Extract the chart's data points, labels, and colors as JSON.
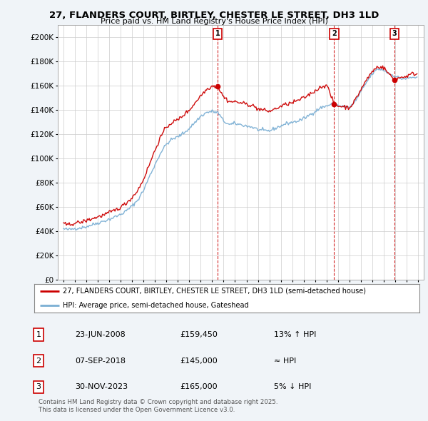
{
  "title": "27, FLANDERS COURT, BIRTLEY, CHESTER LE STREET, DH3 1LD",
  "subtitle": "Price paid vs. HM Land Registry's House Price Index (HPI)",
  "legend_line1": "27, FLANDERS COURT, BIRTLEY, CHESTER LE STREET, DH3 1LD (semi-detached house)",
  "legend_line2": "HPI: Average price, semi-detached house, Gateshead",
  "red_color": "#cc0000",
  "blue_color": "#7bafd4",
  "background_color": "#f0f4f8",
  "plot_bg_color": "#ffffff",
  "grid_color": "#cccccc",
  "ylim": [
    0,
    210000
  ],
  "yticks": [
    0,
    20000,
    40000,
    60000,
    80000,
    100000,
    120000,
    140000,
    160000,
    180000,
    200000
  ],
  "ytick_labels": [
    "£0",
    "£20K",
    "£40K",
    "£60K",
    "£80K",
    "£100K",
    "£120K",
    "£140K",
    "£160K",
    "£180K",
    "£200K"
  ],
  "sale_dates_num": [
    2008.47,
    2018.67,
    2023.92
  ],
  "sale_prices": [
    159450,
    145000,
    165000
  ],
  "sale_labels": [
    "1",
    "2",
    "3"
  ],
  "footnote": "Contains HM Land Registry data © Crown copyright and database right 2025.\nThis data is licensed under the Open Government Licence v3.0.",
  "xlim_start": 1994.5,
  "xlim_end": 2026.5,
  "hpi_anchors": [
    [
      1995.0,
      42000
    ],
    [
      1995.5,
      41500
    ],
    [
      1996.0,
      42500
    ],
    [
      1996.5,
      43000
    ],
    [
      1997.0,
      44000
    ],
    [
      1997.5,
      45500
    ],
    [
      1998.0,
      47000
    ],
    [
      1998.5,
      48500
    ],
    [
      1999.0,
      50000
    ],
    [
      1999.5,
      52000
    ],
    [
      2000.0,
      54000
    ],
    [
      2000.5,
      57000
    ],
    [
      2001.0,
      61000
    ],
    [
      2001.5,
      66000
    ],
    [
      2002.0,
      74000
    ],
    [
      2002.5,
      85000
    ],
    [
      2003.0,
      95000
    ],
    [
      2003.5,
      105000
    ],
    [
      2004.0,
      112000
    ],
    [
      2004.5,
      116000
    ],
    [
      2005.0,
      118000
    ],
    [
      2005.5,
      121000
    ],
    [
      2006.0,
      125000
    ],
    [
      2006.5,
      130000
    ],
    [
      2007.0,
      135000
    ],
    [
      2007.5,
      138000
    ],
    [
      2008.0,
      139000
    ],
    [
      2008.5,
      138000
    ],
    [
      2009.0,
      131000
    ],
    [
      2009.5,
      128000
    ],
    [
      2010.0,
      129000
    ],
    [
      2010.5,
      128000
    ],
    [
      2011.0,
      127000
    ],
    [
      2011.5,
      126000
    ],
    [
      2012.0,
      124000
    ],
    [
      2012.5,
      123000
    ],
    [
      2013.0,
      123000
    ],
    [
      2013.5,
      125000
    ],
    [
      2014.0,
      127000
    ],
    [
      2014.5,
      129000
    ],
    [
      2015.0,
      130000
    ],
    [
      2015.5,
      131000
    ],
    [
      2016.0,
      133000
    ],
    [
      2016.5,
      136000
    ],
    [
      2017.0,
      139000
    ],
    [
      2017.5,
      142000
    ],
    [
      2018.0,
      143500
    ],
    [
      2018.5,
      145000
    ],
    [
      2019.0,
      144000
    ],
    [
      2019.5,
      143000
    ],
    [
      2020.0,
      142000
    ],
    [
      2020.5,
      147000
    ],
    [
      2021.0,
      155000
    ],
    [
      2021.5,
      163000
    ],
    [
      2022.0,
      170000
    ],
    [
      2022.5,
      174000
    ],
    [
      2023.0,
      173000
    ],
    [
      2023.5,
      170000
    ],
    [
      2024.0,
      168000
    ],
    [
      2024.5,
      166000
    ],
    [
      2025.0,
      166000
    ],
    [
      2025.5,
      167000
    ]
  ],
  "red_anchors": [
    [
      1995.0,
      46000
    ],
    [
      1995.5,
      45500
    ],
    [
      1996.0,
      47000
    ],
    [
      1996.5,
      47500
    ],
    [
      1997.0,
      49000
    ],
    [
      1997.5,
      50500
    ],
    [
      1998.0,
      52000
    ],
    [
      1998.5,
      53500
    ],
    [
      1999.0,
      55500
    ],
    [
      1999.5,
      57500
    ],
    [
      2000.0,
      60000
    ],
    [
      2000.5,
      63500
    ],
    [
      2001.0,
      68000
    ],
    [
      2001.5,
      74000
    ],
    [
      2002.0,
      83000
    ],
    [
      2002.5,
      95000
    ],
    [
      2003.0,
      107000
    ],
    [
      2003.5,
      118000
    ],
    [
      2004.0,
      126000
    ],
    [
      2004.5,
      130000
    ],
    [
      2005.0,
      132000
    ],
    [
      2005.5,
      136000
    ],
    [
      2006.0,
      140000
    ],
    [
      2006.5,
      146000
    ],
    [
      2007.0,
      152000
    ],
    [
      2007.5,
      157000
    ],
    [
      2008.0,
      160000
    ],
    [
      2008.47,
      159450
    ],
    [
      2009.0,
      151000
    ],
    [
      2009.5,
      147000
    ],
    [
      2010.0,
      147000
    ],
    [
      2010.5,
      146000
    ],
    [
      2011.0,
      145000
    ],
    [
      2011.5,
      144000
    ],
    [
      2012.0,
      141000
    ],
    [
      2012.5,
      140000
    ],
    [
      2013.0,
      139000
    ],
    [
      2013.5,
      141000
    ],
    [
      2014.0,
      143000
    ],
    [
      2014.5,
      145000
    ],
    [
      2015.0,
      146000
    ],
    [
      2015.5,
      148000
    ],
    [
      2016.0,
      150000
    ],
    [
      2016.5,
      153000
    ],
    [
      2017.0,
      156000
    ],
    [
      2017.5,
      159000
    ],
    [
      2018.0,
      161000
    ],
    [
      2018.67,
      145000
    ],
    [
      2019.0,
      143500
    ],
    [
      2019.5,
      143000
    ],
    [
      2020.0,
      142000
    ],
    [
      2020.5,
      148000
    ],
    [
      2021.0,
      157000
    ],
    [
      2021.5,
      165000
    ],
    [
      2022.0,
      172000
    ],
    [
      2022.5,
      176000
    ],
    [
      2023.0,
      175000
    ],
    [
      2023.92,
      165000
    ],
    [
      2024.0,
      165500
    ],
    [
      2024.5,
      167000
    ],
    [
      2025.0,
      168000
    ],
    [
      2025.5,
      170000
    ]
  ]
}
